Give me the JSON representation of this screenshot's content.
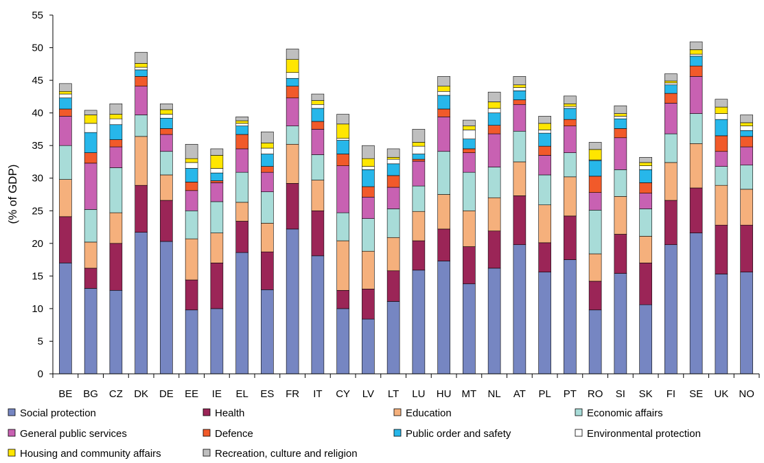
{
  "chart_data": {
    "type": "bar",
    "stacked": true,
    "ylabel": "(% of GDP)",
    "xlabel": "",
    "ylim": [
      0,
      55
    ],
    "ytick_step": 5,
    "grid": false,
    "legend_position": "bottom",
    "categories": [
      "BE",
      "BG",
      "CZ",
      "DK",
      "DE",
      "EE",
      "IE",
      "EL",
      "ES",
      "FR",
      "IT",
      "CY",
      "LV",
      "LT",
      "LU",
      "HU",
      "MT",
      "NL",
      "AT",
      "PL",
      "PT",
      "RO",
      "SI",
      "SK",
      "FI",
      "SE",
      "UK",
      "NO"
    ],
    "series": [
      {
        "name": "Social protection",
        "color": "#7686c2",
        "values": [
          17.0,
          13.1,
          12.8,
          21.7,
          20.3,
          9.8,
          10.0,
          18.6,
          12.9,
          22.2,
          18.1,
          10.0,
          8.4,
          11.1,
          15.9,
          17.3,
          13.8,
          16.2,
          19.8,
          15.6,
          17.5,
          9.8,
          15.4,
          10.6,
          19.8,
          21.6,
          15.3,
          15.6
        ]
      },
      {
        "name": "Health",
        "color": "#9b2557",
        "values": [
          7.1,
          3.1,
          7.2,
          7.2,
          6.3,
          4.6,
          7.0,
          4.8,
          5.8,
          7.0,
          6.9,
          2.8,
          4.6,
          4.7,
          4.5,
          4.9,
          5.7,
          5.7,
          7.5,
          4.5,
          6.7,
          4.4,
          6.0,
          6.4,
          6.8,
          6.9,
          7.5,
          7.2
        ]
      },
      {
        "name": "Education",
        "color": "#f5b07c",
        "values": [
          5.7,
          4.0,
          4.7,
          7.5,
          3.9,
          6.3,
          4.6,
          2.9,
          4.4,
          6.0,
          4.7,
          7.6,
          5.8,
          5.1,
          4.5,
          5.3,
          5.5,
          5.1,
          5.2,
          5.8,
          6.0,
          4.2,
          5.8,
          4.1,
          5.8,
          6.8,
          6.1,
          5.5
        ]
      },
      {
        "name": "Economic affairs",
        "color": "#a8dcd8",
        "values": [
          5.2,
          5.0,
          6.9,
          3.3,
          3.6,
          4.3,
          4.8,
          4.6,
          4.8,
          2.8,
          3.9,
          4.3,
          5.0,
          4.4,
          3.9,
          6.6,
          5.9,
          4.7,
          4.7,
          4.6,
          3.7,
          6.7,
          4.1,
          4.2,
          4.4,
          4.6,
          2.9,
          3.7
        ]
      },
      {
        "name": "General public services",
        "color": "#c861b2",
        "values": [
          4.5,
          7.1,
          3.2,
          4.4,
          2.6,
          3.1,
          2.9,
          3.6,
          3.0,
          4.3,
          3.9,
          7.2,
          3.3,
          3.3,
          3.8,
          5.3,
          3.0,
          5.1,
          4.1,
          3.0,
          4.1,
          2.7,
          4.9,
          2.4,
          4.7,
          5.7,
          2.3,
          2.8
        ]
      },
      {
        "name": "Defence",
        "color": "#f15a2a",
        "values": [
          1.1,
          1.6,
          1.1,
          1.5,
          0.9,
          1.3,
          0.3,
          2.2,
          0.9,
          1.8,
          1.2,
          1.8,
          1.6,
          1.8,
          0.3,
          1.2,
          0.6,
          1.3,
          0.7,
          1.4,
          1.0,
          2.5,
          1.4,
          1.6,
          1.5,
          1.6,
          2.4,
          1.6
        ]
      },
      {
        "name": "Public order and safety",
        "color": "#27b7ea",
        "values": [
          1.7,
          3.1,
          2.3,
          1.0,
          1.6,
          2.1,
          1.2,
          1.3,
          1.9,
          1.2,
          2.0,
          2.1,
          2.6,
          1.8,
          0.8,
          2.1,
          1.5,
          1.9,
          1.4,
          2.0,
          1.7,
          2.4,
          1.5,
          2.0,
          1.3,
          1.5,
          2.5,
          0.9
        ]
      },
      {
        "name": "Environmental protection",
        "color": "#ffffff",
        "values": [
          0.6,
          1.4,
          0.9,
          0.4,
          0.6,
          0.9,
          0.7,
          0.4,
          0.9,
          0.9,
          0.6,
          0.3,
          0.5,
          0.7,
          1.2,
          0.6,
          1.4,
          0.7,
          0.5,
          0.5,
          0.3,
          0.1,
          0.4,
          0.6,
          0.3,
          0.3,
          0.9,
          0.7
        ]
      },
      {
        "name": "Housing and community affairs",
        "color": "#ffe600",
        "values": [
          0.4,
          1.3,
          0.7,
          0.6,
          0.7,
          0.6,
          2.0,
          0.4,
          0.8,
          2.0,
          0.6,
          2.2,
          1.2,
          0.3,
          0.6,
          0.8,
          0.6,
          1.0,
          0.4,
          1.0,
          0.4,
          1.6,
          0.4,
          0.5,
          0.3,
          0.7,
          1.0,
          0.5
        ]
      },
      {
        "name": "Recreation, culture and religion",
        "color": "#bfbfbf",
        "values": [
          1.2,
          0.7,
          1.6,
          1.7,
          0.9,
          2.2,
          1.0,
          0.6,
          1.7,
          1.6,
          1.0,
          1.5,
          2.0,
          1.3,
          2.0,
          1.5,
          0.9,
          1.5,
          1.3,
          1.1,
          1.2,
          1.1,
          1.2,
          0.8,
          1.1,
          1.2,
          1.2,
          1.2
        ]
      }
    ]
  }
}
